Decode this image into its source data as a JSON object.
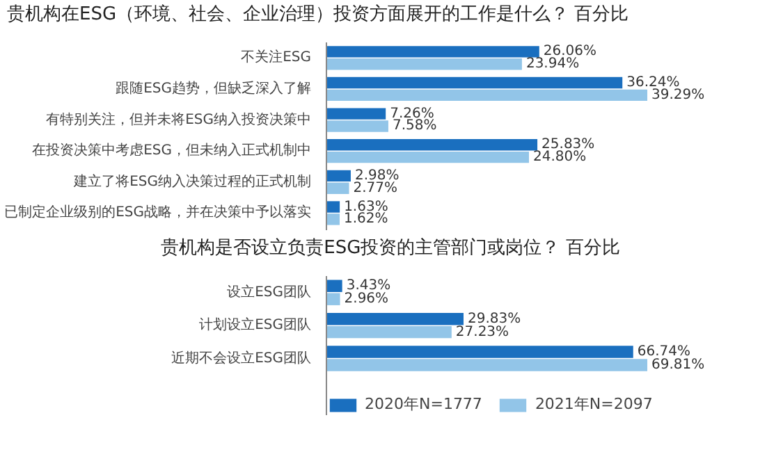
{
  "chart_data": [
    {
      "type": "bar",
      "orientation": "horizontal",
      "title": "贵机构在ESG（环境、社会、企业治理）投资方面展开的工作是什么？ 百分比",
      "categories": [
        "不关注ESG",
        "跟随ESG趋势，但缺乏深入了解",
        "有特别关注，但并未将ESG纳入投资决策中",
        "在投资决策中考虑ESG，但未纳入正式机制中",
        "建立了将ESG纳入决策过程的正式机制",
        "已制定企业级别的ESG战略，并在决策中予以落实"
      ],
      "series": [
        {
          "color": "#1a6fbf",
          "values": [
            26.06,
            36.24,
            7.26,
            25.83,
            2.98,
            1.63
          ],
          "value_labels": [
            "26.06%",
            "36.24%",
            "7.26%",
            "25.83%",
            "2.98%",
            "1.63%"
          ]
        },
        {
          "color": "#92c5e8",
          "values": [
            23.94,
            39.29,
            7.58,
            24.8,
            2.77,
            1.62
          ],
          "value_labels": [
            "23.94%",
            "39.29%",
            "7.58%",
            "24.80%",
            "2.77%",
            "1.62%"
          ]
        }
      ],
      "tick_labels": "y",
      "legend": false
    },
    {
      "type": "bar",
      "orientation": "horizontal",
      "title": "贵机构是否设立负责ESG投资的主管部门或岗位？ 百分比",
      "categories": [
        "设立ESG团队",
        "计划设立ESG团队",
        "近期不会设立ESG团队"
      ],
      "series": [
        {
          "name": "2020年N=1777",
          "color": "#1a6fbf",
          "values": [
            3.43,
            29.83,
            66.74
          ],
          "value_labels": [
            "3.43%",
            "29.83%",
            "66.74%"
          ]
        },
        {
          "name": "2021年N=2097",
          "color": "#92c5e8",
          "values": [
            2.96,
            27.23,
            69.81
          ],
          "value_labels": [
            "2.96%",
            "27.23%",
            "69.81%"
          ]
        }
      ],
      "tick_labels": "y",
      "legend": "bottom"
    }
  ]
}
